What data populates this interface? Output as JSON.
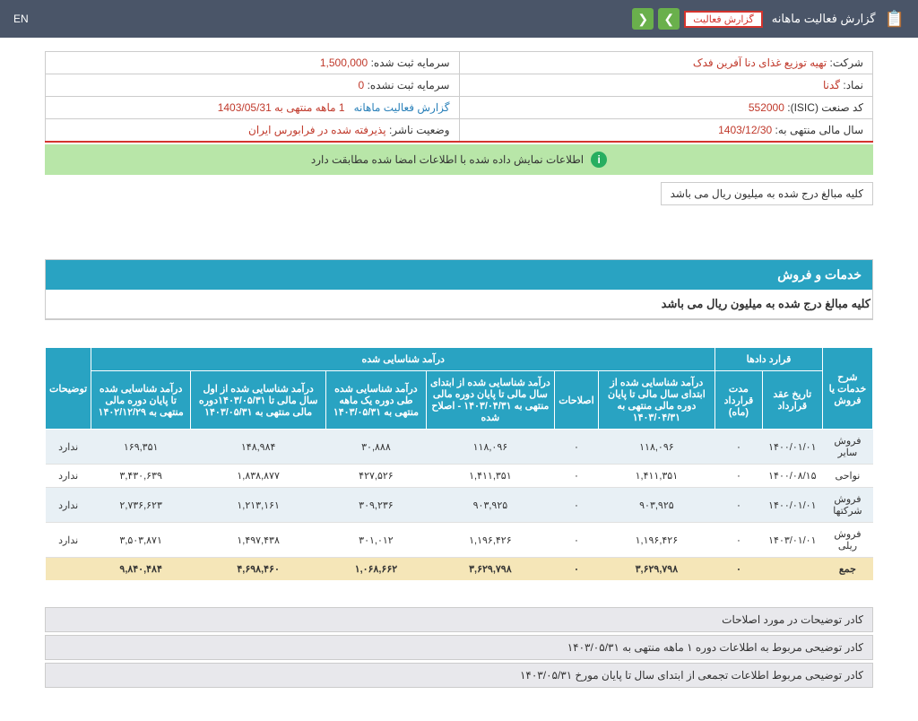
{
  "header": {
    "title": "گزارش فعالیت ماهانه",
    "dropdown": "گزارش فعالیت‌",
    "lang": "EN"
  },
  "company_info": {
    "company_label": "شرکت:",
    "company_value": "تهیه توزیع غذای دنا آفرین فدک",
    "capital_reg_label": "سرمایه ثبت شده:",
    "capital_reg_value": "1,500,000",
    "symbol_label": "نماد:",
    "symbol_value": "گدنا",
    "capital_unreg_label": "سرمایه ثبت نشده:",
    "capital_unreg_value": "0",
    "isic_label": "کد صنعت (ISIC):",
    "isic_value": "552000",
    "report_label": "گزارش فعالیت ماهانه",
    "report_period": "1 ماهه منتهی به 1403/05/31",
    "fiscal_label": "سال مالی منتهی به:",
    "fiscal_value": "1403/12/30",
    "status_label": "وضعیت ناشر:",
    "status_value": "پذیرفته شده در فرابورس ایران"
  },
  "banner": "اطلاعات نمایش داده شده با اطلاعات امضا شده مطابقت دارد",
  "note": "کلیه مبالغ درج شده به میلیون ریال می باشد",
  "section": {
    "title": "خدمات و فروش",
    "subtitle": "کلیه مبالغ درج شده به میلیون ریال می باشد"
  },
  "table": {
    "h_desc": "شرح خدمات یا فروش",
    "h_contracts": "قرارد دادها",
    "h_recognized": "درآمد شناسایی شده",
    "h_notes": "توضیحات",
    "h_contract_date": "تاریخ عقد قرارداد",
    "h_contract_duration": "مدت قرارداد (ماه)",
    "h_income1": "درآمد شناسایی شده از ابتدای سال مالی تا پایان دوره مالی منتهی به ۱۴۰۳/۰۴/۳۱",
    "h_corrections": "اصلاحات",
    "h_income2": "درآمد شناسایی شده از ابتدای سال مالی تا پایان دوره مالی منتهی به ۱۴۰۳/۰۴/۳۱ - اصلاح شده",
    "h_income3": "درآمد شناسایی شده طی دوره یک ماهه منتهی به ۱۴۰۳/۰۵/۳۱",
    "h_income4": "درآمد شناسایی شده از اول سال مالی تا ۱۴۰۳/۰۵/۳۱دوره مالی منتهی به ۱۴۰۳/۰۵/۳۱",
    "h_income5": "درآمد شناسایی شده تا پایان دوره مالی منتهی به ۱۴۰۲/۱۲/۲۹",
    "rows": [
      {
        "name": "فروش سایر",
        "date": "۱۴۰۰/۰۱/۰۱",
        "dur": "۰",
        "i1": "۱۱۸,۰۹۶",
        "cor": "۰",
        "i2": "۱۱۸,۰۹۶",
        "i3": "۳۰,۸۸۸",
        "i4": "۱۴۸,۹۸۴",
        "i5": "۱۶۹,۳۵۱",
        "note": "ندارد"
      },
      {
        "name": "نواحی",
        "date": "۱۴۰۰/۰۸/۱۵",
        "dur": "۰",
        "i1": "۱,۴۱۱,۳۵۱",
        "cor": "۰",
        "i2": "۱,۴۱۱,۳۵۱",
        "i3": "۴۲۷,۵۲۶",
        "i4": "۱,۸۳۸,۸۷۷",
        "i5": "۳,۴۳۰,۶۳۹",
        "note": "ندارد"
      },
      {
        "name": "فروش شرکتها",
        "date": "۱۴۰۰/۰۱/۰۱",
        "dur": "۰",
        "i1": "۹۰۳,۹۲۵",
        "cor": "۰",
        "i2": "۹۰۳,۹۲۵",
        "i3": "۳۰۹,۲۳۶",
        "i4": "۱,۲۱۳,۱۶۱",
        "i5": "۲,۷۳۶,۶۲۳",
        "note": "ندارد"
      },
      {
        "name": "فروش ریلی",
        "date": "۱۴۰۳/۰۱/۰۱",
        "dur": "۰",
        "i1": "۱,۱۹۶,۴۲۶",
        "cor": "۰",
        "i2": "۱,۱۹۶,۴۲۶",
        "i3": "۳۰۱,۰۱۲",
        "i4": "۱,۴۹۷,۴۳۸",
        "i5": "۳,۵۰۳,۸۷۱",
        "note": "ندارد"
      }
    ],
    "total": {
      "name": "جمع",
      "dur": "۰",
      "i1": "۳,۶۲۹,۷۹۸",
      "cor": "۰",
      "i2": "۳,۶۲۹,۷۹۸",
      "i3": "۱,۰۶۸,۶۶۲",
      "i4": "۴,۶۹۸,۴۶۰",
      "i5": "۹,۸۴۰,۴۸۴"
    }
  },
  "footer": {
    "b1": "کادر توضیحات در مورد اصلاحات",
    "b2": "کادر توضیحی مربوط به اطلاعات دوره ۱ ماهه منتهی به ۱۴۰۳/۰۵/۳۱",
    "b3": "کادر توضیحی مربوط اطلاعات تجمعی از ابتدای سال تا پایان مورخ ۱۴۰۳/۰۵/۳۱"
  }
}
